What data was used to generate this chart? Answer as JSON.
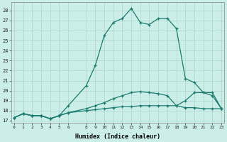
{
  "xlabel": "Humidex (Indice chaleur)",
  "bg_color": "#cceee8",
  "line_color": "#1a7a6e",
  "grid_color": "#aad4cc",
  "x_ticks": [
    0,
    1,
    2,
    3,
    4,
    5,
    6,
    8,
    9,
    10,
    11,
    12,
    13,
    14,
    15,
    16,
    17,
    18,
    19,
    20,
    21,
    22,
    23
  ],
  "yticks": [
    17,
    18,
    19,
    20,
    21,
    22,
    23,
    24,
    25,
    26,
    27,
    28
  ],
  "ylim": [
    16.8,
    28.8
  ],
  "xlim": [
    -0.3,
    23.3
  ],
  "series": [
    {
      "x": [
        0,
        1,
        2,
        3,
        4,
        5,
        6,
        8,
        9,
        10,
        11,
        12,
        13,
        14,
        15,
        16,
        17,
        18,
        19,
        20,
        21,
        22,
        23
      ],
      "y": [
        17.3,
        17.7,
        17.5,
        17.5,
        17.2,
        17.5,
        17.8,
        18.0,
        18.1,
        18.2,
        18.3,
        18.4,
        18.4,
        18.5,
        18.5,
        18.5,
        18.5,
        18.5,
        18.3,
        18.3,
        18.2,
        18.2,
        18.2
      ]
    },
    {
      "x": [
        0,
        1,
        2,
        3,
        4,
        5,
        6,
        8,
        9,
        10,
        11,
        12,
        13,
        14,
        15,
        16,
        17,
        18,
        19,
        20,
        21,
        22,
        23
      ],
      "y": [
        17.3,
        17.7,
        17.5,
        17.5,
        17.2,
        17.5,
        17.8,
        18.2,
        18.5,
        18.8,
        19.2,
        19.5,
        19.8,
        19.9,
        19.8,
        19.7,
        19.5,
        18.5,
        19.0,
        19.8,
        19.8,
        19.5,
        18.2
      ]
    },
    {
      "x": [
        0,
        1,
        2,
        3,
        4,
        5,
        6,
        8,
        9,
        10,
        11,
        12,
        13,
        14,
        15,
        16,
        17,
        18,
        19,
        20,
        21,
        22,
        23
      ],
      "y": [
        17.3,
        17.7,
        17.5,
        17.5,
        17.2,
        17.5,
        18.5,
        20.5,
        22.5,
        25.5,
        26.8,
        27.2,
        28.2,
        26.8,
        26.6,
        27.2,
        27.2,
        26.2,
        21.2,
        20.8,
        19.8,
        19.8,
        18.2
      ]
    }
  ]
}
